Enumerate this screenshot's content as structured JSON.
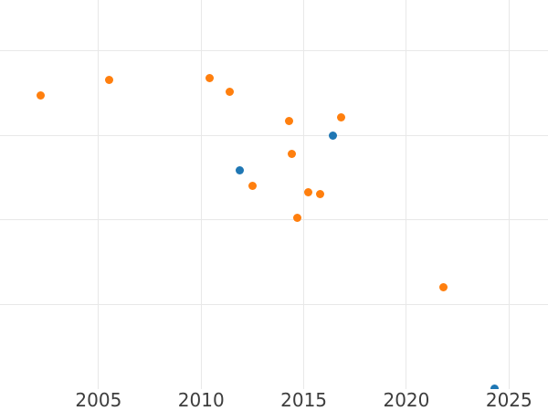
{
  "chart_data": {
    "type": "scatter",
    "title": "",
    "xlabel": "",
    "ylabel": "",
    "x_tick_labels": [
      "2005",
      "2010",
      "2015",
      "2020",
      "2025"
    ],
    "x_ticks": [
      2005,
      2010,
      2015,
      2020,
      2025
    ],
    "xlim": [
      2000.2,
      2026.9
    ],
    "ylim": [
      0,
      4.6
    ],
    "y_gridlines": [
      1,
      2,
      3,
      4
    ],
    "y_axis_note": "y-axis tick labels are cropped out of the screenshot; y values are expressed in gridline units (0 = bottom plot edge, 1 unit = one gridline interval)",
    "grid": true,
    "legend_position": "none",
    "series": [
      {
        "name": "orange-series",
        "color": "#ff7f0e",
        "points": [
          [
            2002.2,
            3.47
          ],
          [
            2005.5,
            3.65
          ],
          [
            2010.4,
            3.68
          ],
          [
            2011.4,
            3.51
          ],
          [
            2012.5,
            2.4
          ],
          [
            2014.3,
            3.17
          ],
          [
            2014.4,
            2.78
          ],
          [
            2014.7,
            2.02
          ],
          [
            2015.2,
            2.33
          ],
          [
            2015.8,
            2.31
          ],
          [
            2016.8,
            3.21
          ],
          [
            2021.8,
            1.2
          ]
        ]
      },
      {
        "name": "blue-series",
        "color": "#1f77b4",
        "points": [
          [
            2011.9,
            2.59
          ],
          [
            2016.4,
            3.0
          ],
          [
            2024.3,
            0.01
          ]
        ]
      }
    ]
  },
  "colors": {
    "background": "#ffffff",
    "gridline": "#e8e8e8",
    "tick_label": "#3d3d3d"
  }
}
